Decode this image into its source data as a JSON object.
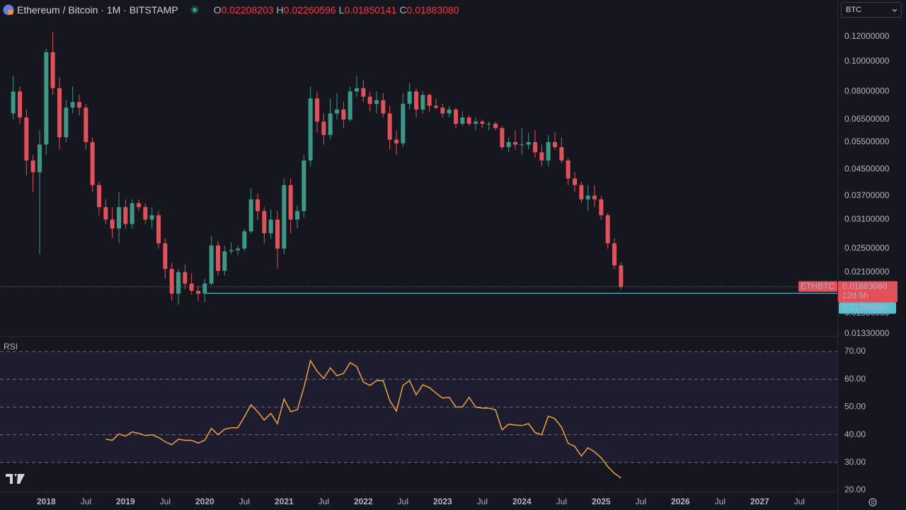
{
  "header": {
    "title": "Ethereum / Bitcoin · 1M · BITSTAMP",
    "ohlc": [
      {
        "key": "O",
        "text": "0.02208203"
      },
      {
        "key": "H",
        "text": "0.02260596"
      },
      {
        "key": "L",
        "text": "0.01850141"
      },
      {
        "key": "C",
        "text": "0.01883080"
      }
    ],
    "currency": "BTC"
  },
  "chart_data": {
    "type": "candlestick",
    "x": [
      "2017-08",
      "2017-09",
      "2017-10",
      "2017-11",
      "2017-12",
      "2018-01",
      "2018-02",
      "2018-03",
      "2018-04",
      "2018-05",
      "2018-06",
      "2018-07",
      "2018-08",
      "2018-09",
      "2018-10",
      "2018-11",
      "2018-12",
      "2019-01",
      "2019-02",
      "2019-03",
      "2019-04",
      "2019-05",
      "2019-06",
      "2019-07",
      "2019-08",
      "2019-09",
      "2019-10",
      "2019-11",
      "2019-12",
      "2020-01",
      "2020-02",
      "2020-03",
      "2020-04",
      "2020-05",
      "2020-06",
      "2020-07",
      "2020-08",
      "2020-09",
      "2020-10",
      "2020-11",
      "2020-12",
      "2021-01",
      "2021-02",
      "2021-03",
      "2021-04",
      "2021-05",
      "2021-06",
      "2021-07",
      "2021-08",
      "2021-09",
      "2021-10",
      "2021-11",
      "2021-12",
      "2022-01",
      "2022-02",
      "2022-03",
      "2022-04",
      "2022-05",
      "2022-06",
      "2022-07",
      "2022-08",
      "2022-09",
      "2022-10",
      "2022-11",
      "2022-12",
      "2023-01",
      "2023-02",
      "2023-03",
      "2023-04",
      "2023-05",
      "2023-06",
      "2023-07",
      "2023-08",
      "2023-09",
      "2023-10",
      "2023-11",
      "2023-12",
      "2024-01",
      "2024-02",
      "2024-03",
      "2024-04",
      "2024-05",
      "2024-06",
      "2024-07",
      "2024-08",
      "2024-09",
      "2024-10",
      "2024-11",
      "2024-12",
      "2025-01",
      "2025-02",
      "2025-03",
      "2025-04"
    ],
    "open": [
      0.068,
      0.08,
      0.066,
      0.048,
      0.044,
      0.054,
      0.107,
      0.082,
      0.057,
      0.071,
      0.074,
      0.071,
      0.055,
      0.04,
      0.034,
      0.031,
      0.029,
      0.034,
      0.03,
      0.035,
      0.034,
      0.031,
      0.032,
      0.026,
      0.0215,
      0.0179,
      0.021,
      0.0193,
      0.0183,
      0.0179,
      0.0193,
      0.0256,
      0.0212,
      0.0245,
      0.0247,
      0.025,
      0.0284,
      0.036,
      0.033,
      0.028,
      0.031,
      0.025,
      0.04,
      0.031,
      0.033,
      0.048,
      0.076,
      0.064,
      0.058,
      0.068,
      0.07,
      0.065,
      0.08,
      0.082,
      0.077,
      0.073,
      0.075,
      0.068,
      0.056,
      0.0545,
      0.073,
      0.08,
      0.07,
      0.078,
      0.072,
      0.071,
      0.068,
      0.07,
      0.063,
      0.066,
      0.063,
      0.064,
      0.063,
      0.063,
      0.061,
      0.053,
      0.055,
      0.054,
      0.054,
      0.055,
      0.051,
      0.048,
      0.055,
      0.053,
      0.048,
      0.042,
      0.04,
      0.036,
      0.037,
      0.036,
      0.032,
      0.026,
      0.02208203
    ],
    "high": [
      0.09,
      0.083,
      0.07,
      0.05,
      0.06,
      0.11,
      0.124,
      0.089,
      0.075,
      0.083,
      0.078,
      0.073,
      0.057,
      0.041,
      0.036,
      0.034,
      0.038,
      0.036,
      0.036,
      0.036,
      0.035,
      0.034,
      0.033,
      0.027,
      0.0225,
      0.0215,
      0.0222,
      0.0208,
      0.019,
      0.02,
      0.0275,
      0.0265,
      0.0255,
      0.0262,
      0.0256,
      0.029,
      0.039,
      0.0375,
      0.034,
      0.0335,
      0.033,
      0.042,
      0.042,
      0.0345,
      0.05,
      0.083,
      0.08,
      0.068,
      0.076,
      0.079,
      0.074,
      0.083,
      0.09,
      0.087,
      0.08,
      0.08,
      0.079,
      0.072,
      0.06,
      0.079,
      0.085,
      0.082,
      0.08,
      0.079,
      0.076,
      0.073,
      0.072,
      0.071,
      0.069,
      0.067,
      0.066,
      0.065,
      0.064,
      0.064,
      0.062,
      0.057,
      0.06,
      0.061,
      0.059,
      0.06,
      0.054,
      0.058,
      0.059,
      0.057,
      0.049,
      0.044,
      0.041,
      0.04,
      0.04,
      0.037,
      0.0325,
      0.027,
      0.02260596
    ],
    "low": [
      0.065,
      0.063,
      0.043,
      0.038,
      0.024,
      0.05,
      0.078,
      0.052,
      0.055,
      0.068,
      0.067,
      0.052,
      0.038,
      0.032,
      0.03,
      0.027,
      0.026,
      0.029,
      0.029,
      0.033,
      0.03,
      0.029,
      0.025,
      0.02,
      0.017,
      0.0165,
      0.0185,
      0.0178,
      0.017,
      0.0168,
      0.019,
      0.0205,
      0.0205,
      0.024,
      0.0238,
      0.0245,
      0.028,
      0.031,
      0.026,
      0.0268,
      0.0215,
      0.024,
      0.028,
      0.029,
      0.0315,
      0.046,
      0.059,
      0.054,
      0.056,
      0.065,
      0.061,
      0.064,
      0.077,
      0.074,
      0.069,
      0.068,
      0.066,
      0.052,
      0.05,
      0.053,
      0.07,
      0.066,
      0.068,
      0.069,
      0.07,
      0.066,
      0.066,
      0.061,
      0.062,
      0.062,
      0.06,
      0.061,
      0.06,
      0.06,
      0.052,
      0.051,
      0.052,
      0.05,
      0.052,
      0.049,
      0.046,
      0.046,
      0.052,
      0.047,
      0.04,
      0.038,
      0.035,
      0.033,
      0.034,
      0.031,
      0.025,
      0.0215,
      0.01850141
    ],
    "close": [
      0.08,
      0.066,
      0.048,
      0.044,
      0.054,
      0.107,
      0.082,
      0.057,
      0.071,
      0.074,
      0.071,
      0.055,
      0.04,
      0.034,
      0.031,
      0.029,
      0.034,
      0.03,
      0.035,
      0.034,
      0.031,
      0.032,
      0.026,
      0.0215,
      0.0179,
      0.021,
      0.0193,
      0.0183,
      0.0179,
      0.0193,
      0.0256,
      0.0212,
      0.0245,
      0.0247,
      0.025,
      0.0284,
      0.036,
      0.033,
      0.028,
      0.031,
      0.025,
      0.04,
      0.031,
      0.033,
      0.048,
      0.076,
      0.064,
      0.058,
      0.068,
      0.07,
      0.065,
      0.08,
      0.082,
      0.077,
      0.073,
      0.075,
      0.068,
      0.056,
      0.0545,
      0.073,
      0.08,
      0.07,
      0.078,
      0.072,
      0.071,
      0.068,
      0.07,
      0.063,
      0.066,
      0.063,
      0.064,
      0.063,
      0.063,
      0.061,
      0.053,
      0.055,
      0.054,
      0.054,
      0.055,
      0.051,
      0.048,
      0.055,
      0.053,
      0.048,
      0.042,
      0.04,
      0.036,
      0.037,
      0.036,
      0.032,
      0.026,
      0.02208203,
      0.0188308
    ],
    "up_color": "#3b9886",
    "down_color": "#e3505a",
    "log_scale": true,
    "ylim": [
      0.01309,
      0.1575
    ],
    "yticks": [
      {
        "value": 0.12,
        "label": "0.12000000"
      },
      {
        "value": 0.1,
        "label": "0.10000000"
      },
      {
        "value": 0.08,
        "label": "0.08000000"
      },
      {
        "value": 0.065,
        "label": "0.06500000"
      },
      {
        "value": 0.055,
        "label": "0.05500000"
      },
      {
        "value": 0.045,
        "label": "0.04500000"
      },
      {
        "value": 0.037,
        "label": "0.03700000"
      },
      {
        "value": 0.031,
        "label": "0.03100000"
      },
      {
        "value": 0.025,
        "label": "0.02500000"
      },
      {
        "value": 0.021,
        "label": "0.02100000"
      },
      {
        "value": 0.0155,
        "label": "0.01550000"
      },
      {
        "value": 0.0133,
        "label": "0.01330000"
      }
    ],
    "xlim": [
      "2017-06",
      "2027-12"
    ],
    "xticks": [
      {
        "value": "2018-01",
        "label": "2018"
      },
      {
        "value": "2018-07",
        "label": "Jul"
      },
      {
        "value": "2019-01",
        "label": "2019"
      },
      {
        "value": "2019-07",
        "label": "Jul"
      },
      {
        "value": "2020-01",
        "label": "2020"
      },
      {
        "value": "2020-07",
        "label": "Jul"
      },
      {
        "value": "2021-01",
        "label": "2021"
      },
      {
        "value": "2021-07",
        "label": "Jul"
      },
      {
        "value": "2022-01",
        "label": "2022"
      },
      {
        "value": "2022-07",
        "label": "Jul"
      },
      {
        "value": "2023-01",
        "label": "2023"
      },
      {
        "value": "2023-07",
        "label": "Jul"
      },
      {
        "value": "2024-01",
        "label": "2024"
      },
      {
        "value": "2024-07",
        "label": "Jul"
      },
      {
        "value": "2025-01",
        "label": "2025"
      },
      {
        "value": "2025-07",
        "label": "Jul"
      },
      {
        "value": "2026-01",
        "label": "2026"
      },
      {
        "value": "2026-07",
        "label": "Jul"
      },
      {
        "value": "2027-01",
        "label": "2027"
      },
      {
        "value": "2027-07",
        "label": "Jul"
      }
    ],
    "last_price": {
      "symbol": "ETHBTC",
      "label": "0.01883080",
      "countdown": "12d 5h"
    },
    "level_line": {
      "value": 0.01796999,
      "label": "0.01796999",
      "color": "#5bbfd3"
    },
    "rsi": {
      "title": "RSI",
      "color": "#f0a13a",
      "values": [
        null,
        null,
        null,
        null,
        null,
        null,
        null,
        null,
        null,
        null,
        null,
        null,
        null,
        null,
        38.4,
        38,
        40.3,
        39.5,
        41,
        40.5,
        39.7,
        40,
        39,
        37.5,
        36.4,
        38.4,
        38,
        38,
        37,
        38,
        42.3,
        40,
        42,
        42.5,
        42.5,
        46.5,
        50.8,
        48.3,
        45.3,
        47.7,
        44,
        52.9,
        48.3,
        49,
        57,
        66.7,
        62.9,
        60.3,
        64.1,
        61.3,
        62.1,
        66,
        64.6,
        59,
        57.8,
        59.5,
        59.5,
        52.3,
        48.5,
        57.8,
        59.5,
        54.4,
        58,
        57,
        55,
        53.2,
        53.5,
        50,
        50,
        53.5,
        50,
        49.6,
        49.6,
        49,
        41.8,
        43.8,
        43.5,
        43.3,
        44,
        40.8,
        40,
        46.7,
        45.8,
        42.7,
        36.9,
        35.8,
        32.3,
        35.3,
        33.8,
        31.7,
        28.5,
        26.1,
        24.4
      ],
      "ylim": [
        19.49,
        73.06
      ],
      "band": [
        30,
        70
      ],
      "yticks": [
        {
          "value": 70,
          "label": "70.00"
        },
        {
          "value": 60,
          "label": "60.00"
        },
        {
          "value": 50,
          "label": "50.00"
        },
        {
          "value": 40,
          "label": "40.00"
        },
        {
          "value": 30,
          "label": "30.00"
        },
        {
          "value": 20,
          "label": "20.00"
        }
      ]
    }
  }
}
